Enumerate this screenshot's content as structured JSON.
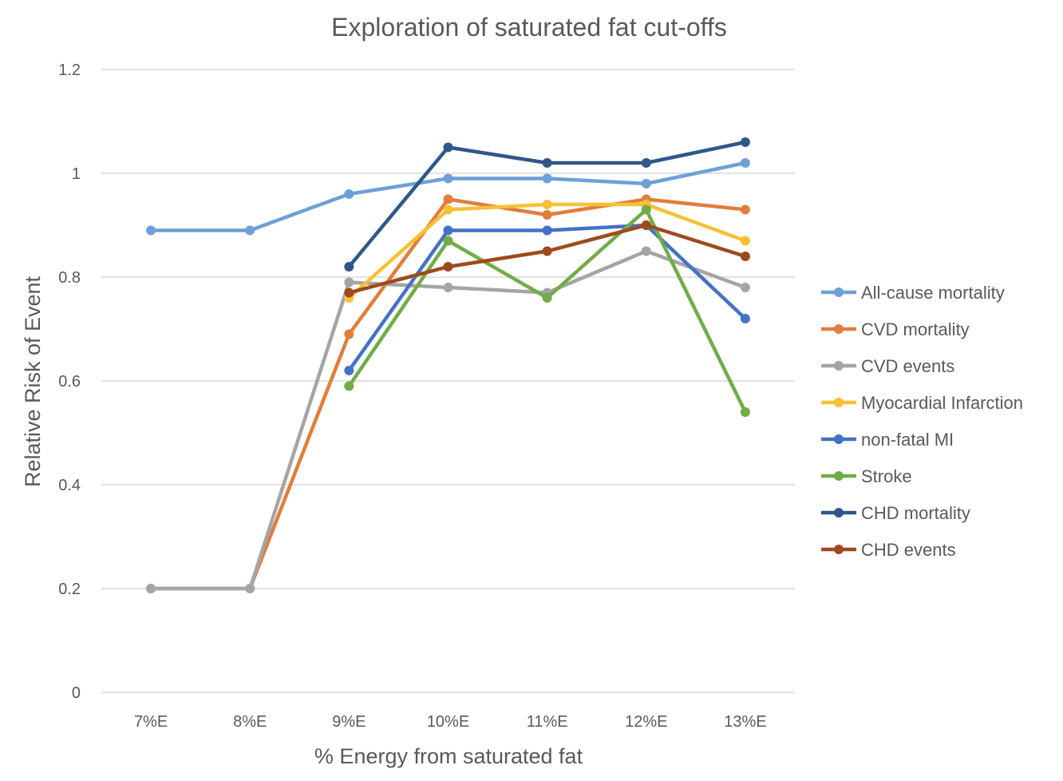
{
  "chart_data": {
    "type": "line",
    "title": "Exploration of saturated fat cut-offs",
    "xlabel": "% Energy from saturated fat",
    "ylabel": "Relative Risk of Event",
    "categories": [
      "7%E",
      "8%E",
      "9%E",
      "10%E",
      "11%E",
      "12%E",
      "13%E"
    ],
    "ylim": [
      0,
      1.2
    ],
    "yticks": [
      "0",
      "0.2",
      "0.4",
      "0.6",
      "0.8",
      "1",
      "1.2"
    ],
    "grid": "horizontal",
    "legend_position": "right",
    "series": [
      {
        "name": "All-cause mortality",
        "color": "#6f9fd8",
        "values": [
          0.89,
          0.89,
          0.96,
          0.99,
          0.99,
          0.98,
          1.02
        ]
      },
      {
        "name": "CVD mortality",
        "color": "#e07e3c",
        "values": [
          0.2,
          0.2,
          0.69,
          0.95,
          0.92,
          0.95,
          0.93
        ]
      },
      {
        "name": "CVD events",
        "color": "#a5a5a5",
        "values": [
          0.2,
          0.2,
          0.79,
          0.78,
          0.77,
          0.85,
          0.78
        ]
      },
      {
        "name": "Myocardial Infarction",
        "color": "#f7c136",
        "values": [
          null,
          null,
          0.76,
          0.93,
          0.94,
          0.94,
          0.87
        ]
      },
      {
        "name": "non-fatal MI",
        "color": "#4472c4",
        "values": [
          null,
          null,
          0.62,
          0.89,
          0.89,
          0.9,
          0.72
        ]
      },
      {
        "name": "Stroke",
        "color": "#70ad47",
        "values": [
          null,
          null,
          0.59,
          0.87,
          0.76,
          0.93,
          0.54
        ]
      },
      {
        "name": "CHD mortality",
        "color": "#2f5888",
        "values": [
          null,
          null,
          0.82,
          1.05,
          1.02,
          1.02,
          1.06
        ]
      },
      {
        "name": "CHD events",
        "color": "#9e4a1e",
        "values": [
          null,
          null,
          0.77,
          0.82,
          0.85,
          0.9,
          0.84
        ]
      }
    ]
  }
}
